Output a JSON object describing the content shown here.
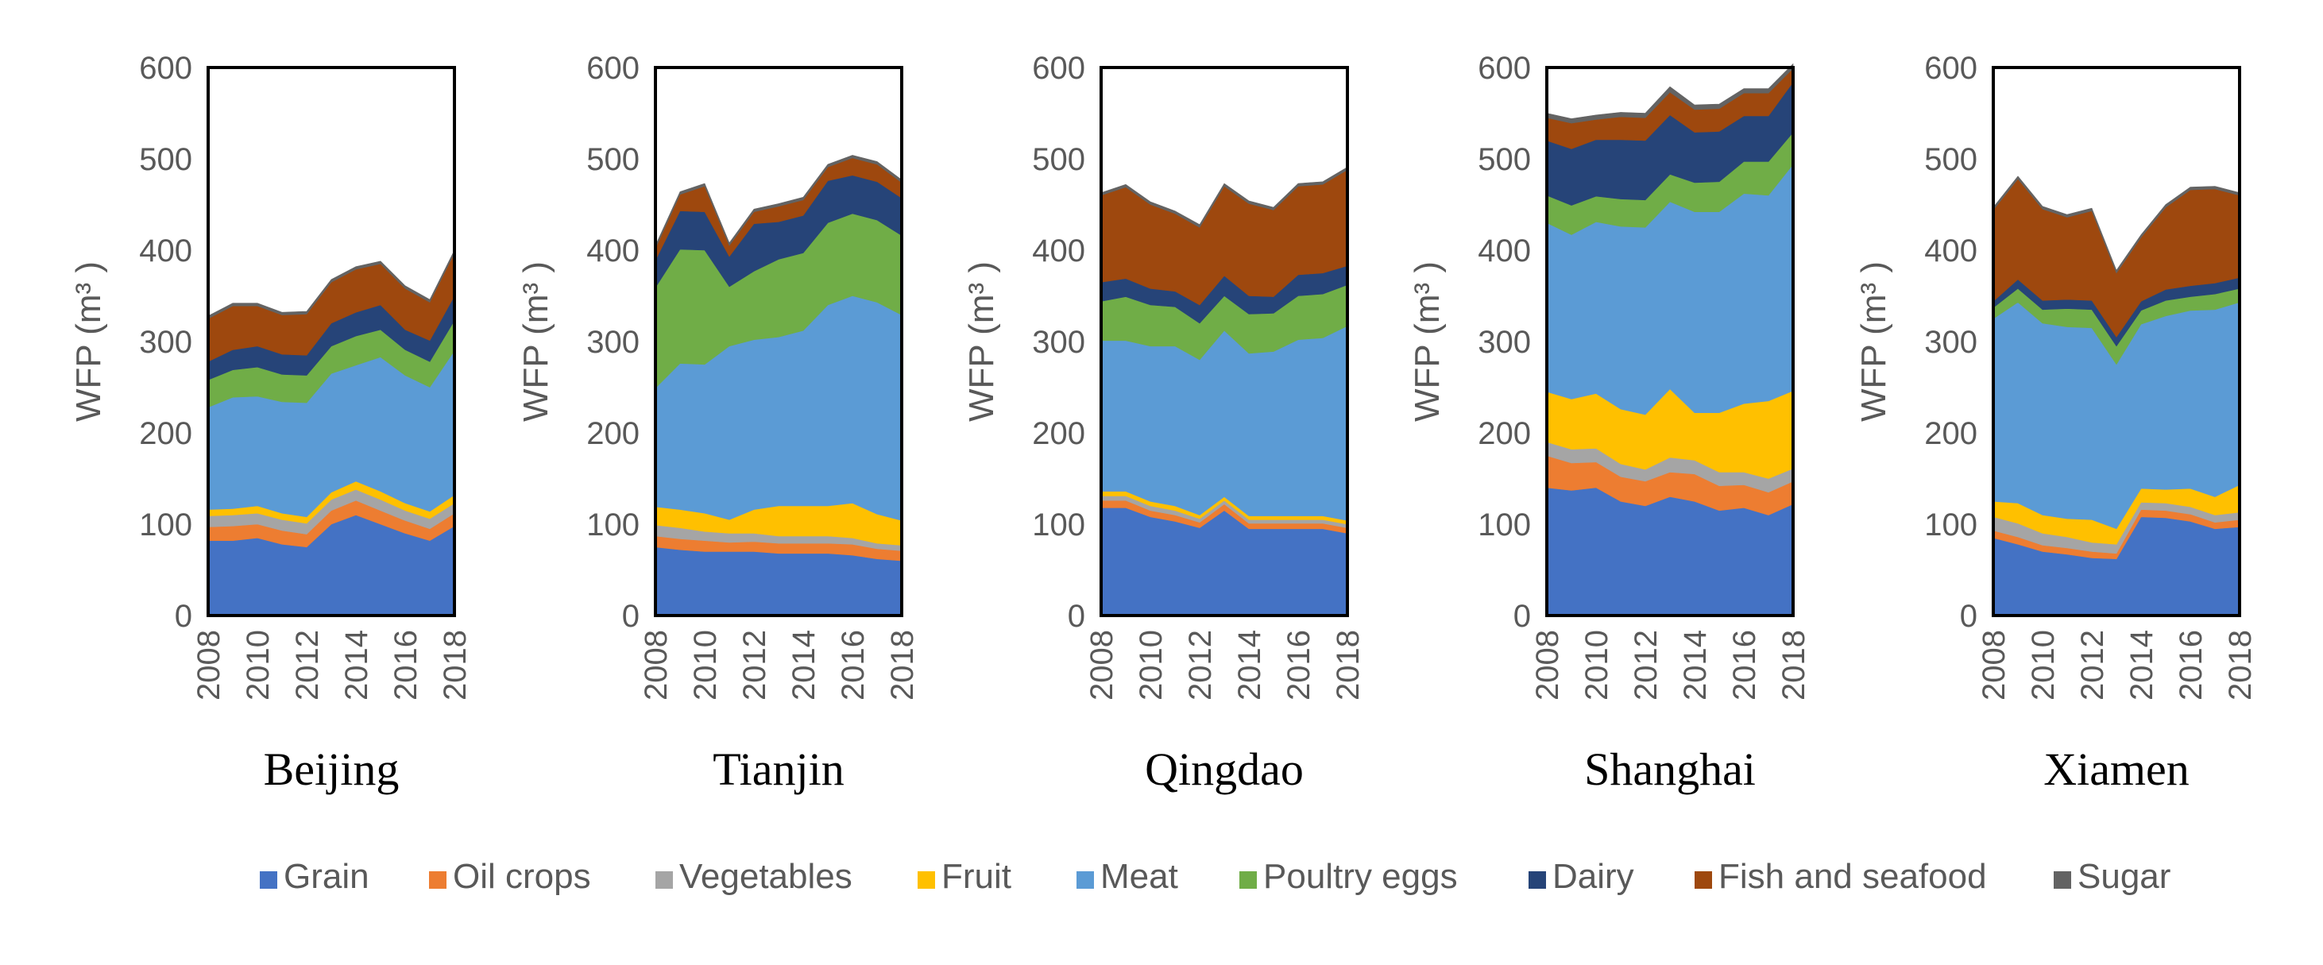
{
  "figure": {
    "y_axis_label": "WFP (m³ )"
  },
  "legend": [
    {
      "name": "Grain",
      "color": "#4472C4"
    },
    {
      "name": "Oil crops",
      "color": "#ED7D31"
    },
    {
      "name": "Vegetables",
      "color": "#A5A5A5"
    },
    {
      "name": "Fruit",
      "color": "#FFC000"
    },
    {
      "name": "Meat",
      "color": "#5B9BD5"
    },
    {
      "name": "Poultry eggs",
      "color": "#70AD47"
    },
    {
      "name": "Dairy",
      "color": "#264478"
    },
    {
      "name": "Fish and seafood",
      "color": "#9E480E"
    },
    {
      "name": "Sugar",
      "color": "#636363"
    }
  ],
  "chart_data": [
    {
      "type": "area",
      "stacked": true,
      "title": "Beijing",
      "ylabel": "WFP (m³ )",
      "ylim": [
        0,
        600
      ],
      "yticks": [
        0,
        100,
        200,
        300,
        400,
        500,
        600
      ],
      "x": [
        2008,
        2009,
        2010,
        2011,
        2012,
        2013,
        2014,
        2015,
        2016,
        2017,
        2018
      ],
      "xticks": [
        2008,
        2010,
        2012,
        2014,
        2016,
        2018
      ],
      "series": [
        {
          "name": "Grain",
          "values": [
            82,
            82,
            85,
            78,
            75,
            100,
            110,
            100,
            90,
            82,
            98
          ]
        },
        {
          "name": "Oil crops",
          "values": [
            15,
            16,
            15,
            15,
            14,
            15,
            16,
            15,
            14,
            13,
            14
          ]
        },
        {
          "name": "Vegetables",
          "values": [
            12,
            12,
            12,
            12,
            12,
            12,
            12,
            12,
            11,
            11,
            11
          ]
        },
        {
          "name": "Fruit",
          "values": [
            7,
            7,
            8,
            7,
            7,
            8,
            9,
            9,
            8,
            8,
            9
          ]
        },
        {
          "name": "Meat",
          "values": [
            112,
            122,
            120,
            122,
            125,
            130,
            127,
            147,
            140,
            136,
            158
          ]
        },
        {
          "name": "Poultry eggs",
          "values": [
            30,
            30,
            32,
            30,
            30,
            30,
            32,
            30,
            28,
            28,
            33
          ]
        },
        {
          "name": "Dairy",
          "values": [
            20,
            22,
            23,
            22,
            22,
            25,
            26,
            27,
            22,
            23,
            27
          ]
        },
        {
          "name": "Fish and seafood",
          "values": [
            47,
            48,
            44,
            43,
            45,
            45,
            47,
            45,
            45,
            42,
            47
          ]
        },
        {
          "name": "Sugar",
          "values": [
            3,
            3,
            3,
            3,
            3,
            3,
            3,
            3,
            3,
            3,
            3
          ]
        }
      ]
    },
    {
      "type": "area",
      "stacked": true,
      "title": "Tianjin",
      "ylabel": "WFP (m³ )",
      "ylim": [
        0,
        600
      ],
      "yticks": [
        0,
        100,
        200,
        300,
        400,
        500,
        600
      ],
      "x": [
        2008,
        2009,
        2010,
        2011,
        2012,
        2013,
        2014,
        2015,
        2016,
        2017,
        2018
      ],
      "xticks": [
        2008,
        2010,
        2012,
        2014,
        2016,
        2018
      ],
      "series": [
        {
          "name": "Grain",
          "values": [
            75,
            72,
            70,
            70,
            70,
            68,
            68,
            68,
            66,
            62,
            60
          ]
        },
        {
          "name": "Oil crops",
          "values": [
            12,
            12,
            12,
            10,
            11,
            11,
            11,
            11,
            12,
            11,
            11
          ]
        },
        {
          "name": "Vegetables",
          "values": [
            12,
            12,
            10,
            10,
            9,
            8,
            8,
            8,
            7,
            6,
            6
          ]
        },
        {
          "name": "Fruit",
          "values": [
            20,
            20,
            20,
            15,
            26,
            33,
            33,
            33,
            38,
            32,
            27
          ]
        },
        {
          "name": "Meat",
          "values": [
            130,
            160,
            163,
            190,
            186,
            185,
            192,
            220,
            227,
            232,
            225
          ]
        },
        {
          "name": "Poultry eggs",
          "values": [
            110,
            125,
            125,
            65,
            75,
            85,
            85,
            90,
            90,
            90,
            87
          ]
        },
        {
          "name": "Dairy",
          "values": [
            30,
            42,
            42,
            33,
            52,
            41,
            41,
            46,
            42,
            42,
            41
          ]
        },
        {
          "name": "Fish and seafood",
          "values": [
            13,
            18,
            28,
            12,
            13,
            17,
            17,
            15,
            19,
            19,
            17
          ]
        },
        {
          "name": "Sugar",
          "values": [
            3,
            3,
            3,
            3,
            3,
            3,
            3,
            3,
            3,
            3,
            3
          ]
        }
      ]
    },
    {
      "type": "area",
      "stacked": true,
      "title": "Qingdao",
      "ylabel": "WFP (m³ )",
      "ylim": [
        0,
        600
      ],
      "yticks": [
        0,
        100,
        200,
        300,
        400,
        500,
        600
      ],
      "x": [
        2008,
        2009,
        2010,
        2011,
        2012,
        2013,
        2014,
        2015,
        2016,
        2017,
        2018
      ],
      "xticks": [
        2008,
        2010,
        2012,
        2014,
        2016,
        2018
      ],
      "series": [
        {
          "name": "Grain",
          "values": [
            118,
            118,
            108,
            103,
            96,
            115,
            95,
            95,
            95,
            95,
            90
          ]
        },
        {
          "name": "Oil crops",
          "values": [
            8,
            8,
            7,
            7,
            6,
            7,
            6,
            6,
            6,
            6,
            6
          ]
        },
        {
          "name": "Vegetables",
          "values": [
            5,
            5,
            5,
            5,
            4,
            4,
            4,
            4,
            4,
            4,
            4
          ]
        },
        {
          "name": "Fruit",
          "values": [
            5,
            5,
            5,
            5,
            4,
            4,
            4,
            4,
            4,
            4,
            4
          ]
        },
        {
          "name": "Meat",
          "values": [
            165,
            165,
            170,
            175,
            170,
            182,
            178,
            180,
            193,
            195,
            213
          ]
        },
        {
          "name": "Poultry eggs",
          "values": [
            43,
            48,
            45,
            43,
            40,
            38,
            43,
            42,
            48,
            48,
            45
          ]
        },
        {
          "name": "Dairy",
          "values": [
            21,
            20,
            18,
            17,
            20,
            22,
            20,
            18,
            23,
            23,
            21
          ]
        },
        {
          "name": "Fish and seafood",
          "values": [
            95,
            100,
            92,
            85,
            85,
            98,
            101,
            95,
            97,
            97,
            105
          ]
        },
        {
          "name": "Sugar",
          "values": [
            3,
            3,
            3,
            3,
            3,
            3,
            3,
            3,
            3,
            3,
            3
          ]
        }
      ]
    },
    {
      "type": "area",
      "stacked": true,
      "title": "Shanghai",
      "ylabel": "WFP (m³ )",
      "ylim": [
        0,
        600
      ],
      "yticks": [
        0,
        100,
        200,
        300,
        400,
        500,
        600
      ],
      "x": [
        2008,
        2009,
        2010,
        2011,
        2012,
        2013,
        2014,
        2015,
        2016,
        2017,
        2018
      ],
      "xticks": [
        2008,
        2010,
        2012,
        2014,
        2016,
        2018
      ],
      "series": [
        {
          "name": "Grain",
          "values": [
            140,
            137,
            140,
            125,
            120,
            130,
            125,
            115,
            118,
            110,
            122
          ]
        },
        {
          "name": "Oil crops",
          "values": [
            35,
            30,
            28,
            27,
            27,
            27,
            30,
            27,
            25,
            25,
            25
          ]
        },
        {
          "name": "Vegetables",
          "values": [
            15,
            15,
            15,
            14,
            13,
            16,
            15,
            15,
            14,
            15,
            14
          ]
        },
        {
          "name": "Fruit",
          "values": [
            55,
            55,
            60,
            60,
            60,
            75,
            52,
            65,
            75,
            85,
            85
          ]
        },
        {
          "name": "Meat",
          "values": [
            185,
            180,
            188,
            200,
            205,
            205,
            220,
            220,
            230,
            225,
            248
          ]
        },
        {
          "name": "Poultry eggs",
          "values": [
            30,
            32,
            28,
            30,
            30,
            30,
            32,
            33,
            35,
            37,
            35
          ]
        },
        {
          "name": "Dairy",
          "values": [
            60,
            62,
            62,
            65,
            65,
            65,
            55,
            55,
            50,
            50,
            55
          ]
        },
        {
          "name": "Fish and seafood",
          "values": [
            25,
            28,
            22,
            25,
            25,
            25,
            25,
            25,
            25,
            25,
            15
          ]
        },
        {
          "name": "Sugar",
          "values": [
            5,
            5,
            5,
            5,
            5,
            6,
            5,
            5,
            5,
            5,
            5
          ]
        }
      ]
    },
    {
      "type": "area",
      "stacked": true,
      "title": "Xiamen",
      "ylabel": "WFP (m³ )",
      "ylim": [
        0,
        600
      ],
      "yticks": [
        0,
        100,
        200,
        300,
        400,
        500,
        600
      ],
      "x": [
        2008,
        2009,
        2010,
        2011,
        2012,
        2013,
        2014,
        2015,
        2016,
        2017,
        2018
      ],
      "xticks": [
        2008,
        2010,
        2012,
        2014,
        2016,
        2018
      ],
      "series": [
        {
          "name": "Grain",
          "values": [
            85,
            78,
            70,
            67,
            63,
            62,
            108,
            107,
            103,
            95,
            97
          ]
        },
        {
          "name": "Oil crops",
          "values": [
            8,
            8,
            7,
            7,
            7,
            6,
            8,
            8,
            8,
            7,
            8
          ]
        },
        {
          "name": "Vegetables",
          "values": [
            15,
            15,
            13,
            12,
            10,
            10,
            8,
            8,
            8,
            8,
            8
          ]
        },
        {
          "name": "Fruit",
          "values": [
            17,
            22,
            20,
            20,
            25,
            17,
            15,
            15,
            20,
            20,
            30
          ]
        },
        {
          "name": "Meat",
          "values": [
            200,
            220,
            210,
            210,
            210,
            180,
            180,
            190,
            195,
            205,
            200
          ]
        },
        {
          "name": "Poultry eggs",
          "values": [
            12,
            15,
            15,
            20,
            20,
            20,
            15,
            17,
            15,
            17,
            15
          ]
        },
        {
          "name": "Dairy",
          "values": [
            7,
            10,
            10,
            10,
            10,
            10,
            10,
            12,
            12,
            12,
            12
          ]
        },
        {
          "name": "Fish and seafood",
          "values": [
            100,
            110,
            100,
            90,
            98,
            70,
            70,
            90,
            105,
            103,
            90
          ]
        },
        {
          "name": "Sugar",
          "values": [
            3,
            3,
            3,
            3,
            3,
            3,
            3,
            3,
            3,
            3,
            3
          ]
        }
      ]
    }
  ]
}
